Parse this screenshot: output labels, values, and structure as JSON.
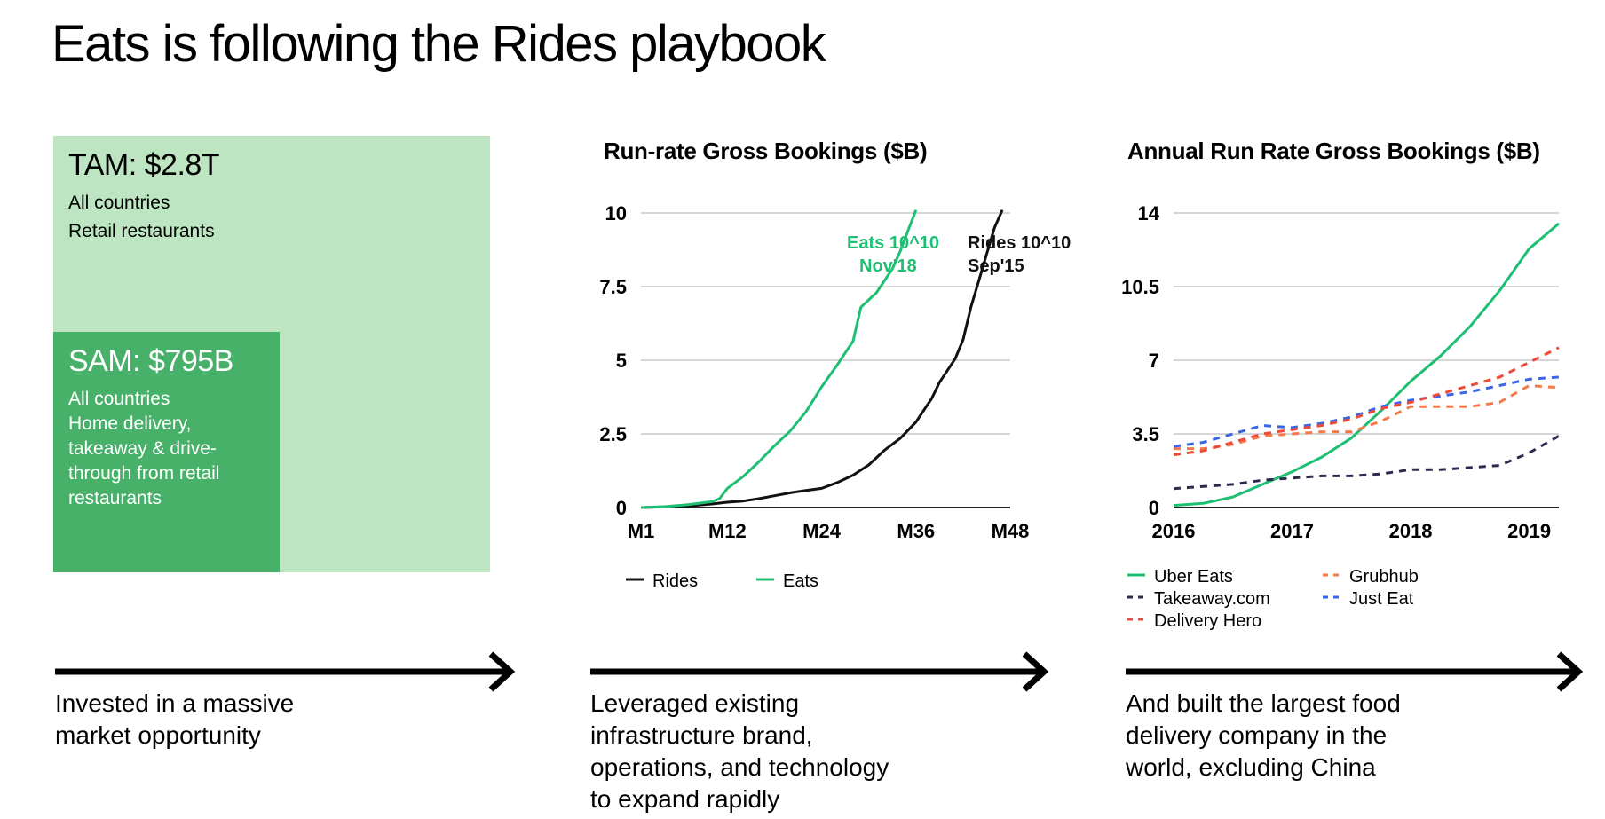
{
  "page": {
    "title": "Eats is following the Rides playbook"
  },
  "tam": {
    "heading": "TAM: $2.8T",
    "lines": [
      "All countries",
      "Retail restaurants"
    ]
  },
  "sam": {
    "heading": "SAM: $795B",
    "lines": [
      "All countries",
      "Home delivery,",
      "takeaway & drive-",
      "through from retail",
      "restaurants"
    ]
  },
  "captions": {
    "col1": [
      "Invested in a massive",
      "market opportunity"
    ],
    "col2": [
      "Leveraged existing",
      "infrastructure brand,",
      "operations, and technology",
      "to expand rapidly"
    ],
    "col3": [
      "And built the largest food",
      "delivery company in the",
      "world, excluding China"
    ]
  },
  "chart_data": [
    {
      "type": "line",
      "title": "Run-rate Gross Bookings ($B)",
      "xlabel": "",
      "ylabel": "",
      "ylim": [
        0,
        10
      ],
      "xlim": [
        1,
        48
      ],
      "yticks": [
        "0",
        "2.5",
        "5",
        "7.5",
        "10"
      ],
      "xticks": [
        "M1",
        "M12",
        "M24",
        "M36",
        "M48"
      ],
      "xtick_values": [
        1,
        12,
        24,
        36,
        48
      ],
      "grid": true,
      "legend": "bottom",
      "series": [
        {
          "name": "Rides",
          "color": "#111111",
          "points": [
            [
              1,
              0
            ],
            [
              4,
              0.02
            ],
            [
              7,
              0.05
            ],
            [
              10,
              0.12
            ],
            [
              12,
              0.18
            ],
            [
              14,
              0.22
            ],
            [
              16,
              0.3
            ],
            [
              18,
              0.4
            ],
            [
              20,
              0.5
            ],
            [
              22,
              0.58
            ],
            [
              24,
              0.65
            ],
            [
              26,
              0.85
            ],
            [
              28,
              1.1
            ],
            [
              30,
              1.45
            ],
            [
              32,
              1.95
            ],
            [
              34,
              2.35
            ],
            [
              36,
              2.9
            ],
            [
              37,
              3.3
            ],
            [
              38,
              3.7
            ],
            [
              39,
              4.25
            ],
            [
              40,
              4.65
            ],
            [
              41,
              5.05
            ],
            [
              42,
              5.7
            ],
            [
              43,
              6.8
            ],
            [
              44,
              7.7
            ],
            [
              45,
              8.6
            ],
            [
              46,
              9.5
            ],
            [
              47,
              10.1
            ]
          ]
        },
        {
          "name": "Eats",
          "color": "#1fbf73",
          "points": [
            [
              1,
              0
            ],
            [
              4,
              0.03
            ],
            [
              7,
              0.1
            ],
            [
              10,
              0.2
            ],
            [
              11,
              0.3
            ],
            [
              12,
              0.65
            ],
            [
              14,
              1.05
            ],
            [
              16,
              1.55
            ],
            [
              18,
              2.1
            ],
            [
              20,
              2.6
            ],
            [
              22,
              3.25
            ],
            [
              24,
              4.1
            ],
            [
              26,
              4.85
            ],
            [
              28,
              5.65
            ],
            [
              29,
              6.8
            ],
            [
              31,
              7.3
            ],
            [
              33,
              8.1
            ],
            [
              34,
              8.7
            ],
            [
              35,
              9.4
            ],
            [
              36,
              10.1
            ]
          ]
        }
      ],
      "annotations": [
        {
          "text": [
            "Eats 10^10",
            "Nov'18"
          ],
          "color": "#1fbf73"
        },
        {
          "text": [
            "Rides 10^10",
            "Sep'15"
          ],
          "color": "#111111"
        }
      ]
    },
    {
      "type": "line",
      "title": "Annual Run Rate Gross Bookings ($B)",
      "xlabel": "",
      "ylabel": "",
      "ylim": [
        0,
        14
      ],
      "xlim": [
        2016,
        2019.25
      ],
      "yticks": [
        "0",
        "3.5",
        "7",
        "10.5",
        "14"
      ],
      "xticks": [
        "2016",
        "2017",
        "2018",
        "2019"
      ],
      "xtick_values": [
        2016,
        2017,
        2018,
        2019
      ],
      "grid": true,
      "legend": "bottom",
      "series": [
        {
          "name": "Uber Eats",
          "color": "#1fbf73",
          "dash": false,
          "x": [
            2016,
            2016.25,
            2016.5,
            2016.75,
            2017,
            2017.25,
            2017.5,
            2017.75,
            2018,
            2018.25,
            2018.5,
            2018.75,
            2019,
            2019.25
          ],
          "values": [
            0.1,
            0.2,
            0.5,
            1.1,
            1.7,
            2.4,
            3.3,
            4.6,
            6.0,
            7.2,
            8.6,
            10.3,
            12.3,
            13.5
          ]
        },
        {
          "name": "Takeaway.com",
          "color": "#2b2b4e",
          "dash": true,
          "x": [
            2016,
            2016.25,
            2016.5,
            2016.75,
            2017,
            2017.25,
            2017.5,
            2017.75,
            2018,
            2018.25,
            2018.5,
            2018.75,
            2019,
            2019.25
          ],
          "values": [
            0.9,
            1.0,
            1.1,
            1.3,
            1.4,
            1.5,
            1.5,
            1.6,
            1.8,
            1.8,
            1.9,
            2.0,
            2.6,
            3.4
          ]
        },
        {
          "name": "Grubhub",
          "color": "#f57a4a",
          "dash": true,
          "x": [
            2016,
            2016.25,
            2016.5,
            2016.75,
            2017,
            2017.25,
            2017.5,
            2017.75,
            2018,
            2018.25,
            2018.5,
            2018.75,
            2019,
            2019.25
          ],
          "values": [
            2.8,
            2.8,
            3.0,
            3.4,
            3.5,
            3.6,
            3.6,
            4.1,
            4.8,
            4.8,
            4.8,
            5.0,
            5.8,
            5.7
          ]
        },
        {
          "name": "Just Eat",
          "color": "#3a66e6",
          "dash": true,
          "x": [
            2016,
            2016.25,
            2016.5,
            2016.75,
            2017,
            2017.25,
            2017.5,
            2017.75,
            2018,
            2018.25,
            2018.5,
            2018.75,
            2019,
            2019.25
          ],
          "values": [
            2.9,
            3.1,
            3.5,
            3.9,
            3.8,
            4.0,
            4.3,
            4.8,
            5.1,
            5.3,
            5.5,
            5.8,
            6.1,
            6.2
          ]
        },
        {
          "name": "Delivery Hero",
          "color": "#ee4a3a",
          "dash": true,
          "x": [
            2016,
            2016.25,
            2016.5,
            2016.75,
            2017,
            2017.25,
            2017.5,
            2017.75,
            2018,
            2018.25,
            2018.5,
            2018.75,
            2019,
            2019.25
          ],
          "values": [
            2.5,
            2.7,
            3.1,
            3.5,
            3.7,
            3.9,
            4.2,
            4.7,
            5.0,
            5.4,
            5.8,
            6.2,
            6.9,
            7.6
          ]
        }
      ]
    }
  ]
}
